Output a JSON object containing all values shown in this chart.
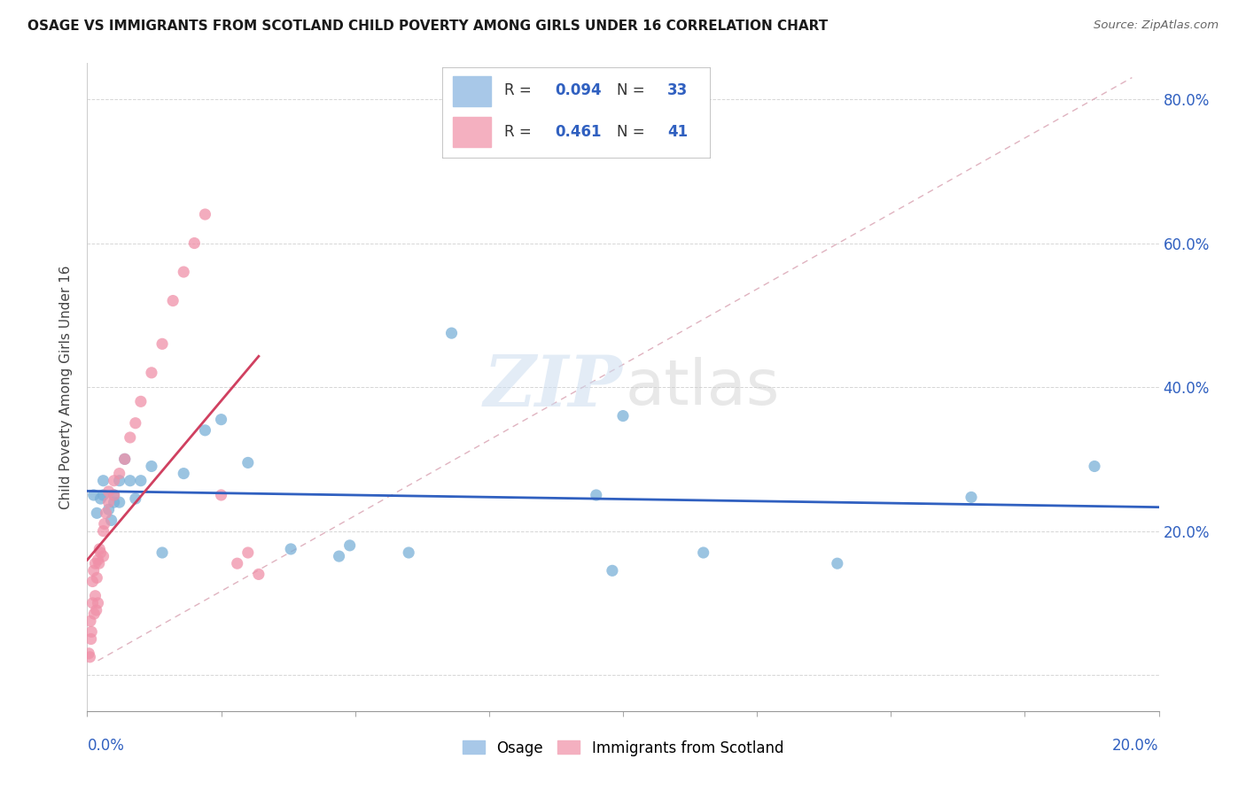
{
  "title": "OSAGE VS IMMIGRANTS FROM SCOTLAND CHILD POVERTY AMONG GIRLS UNDER 16 CORRELATION CHART",
  "source": "Source: ZipAtlas.com",
  "ylabel": "Child Poverty Among Girls Under 16",
  "xmin": 0.0,
  "xmax": 0.2,
  "ymin": -0.05,
  "ymax": 0.85,
  "ytick_positions": [
    0.0,
    0.2,
    0.4,
    0.6,
    0.8
  ],
  "ytick_labels": [
    "",
    "20.0%",
    "40.0%",
    "60.0%",
    "80.0%"
  ],
  "legend_bottom": [
    "Osage",
    "Immigrants from Scotland"
  ],
  "legend_bottom_colors": [
    "#a8c8e8",
    "#f4b0c0"
  ],
  "osage_color": "#7ab0d8",
  "scotland_color": "#f090a8",
  "osage_line_color": "#3060c0",
  "scotland_line_color": "#d04060",
  "dashed_line_color": "#e090a0",
  "R_osage": "0.094",
  "N_osage": "33",
  "R_scotland": "0.461",
  "N_scotland": "41",
  "value_color": "#3060c0",
  "osage_x": [
    0.0012,
    0.0018,
    0.0025,
    0.003,
    0.003,
    0.004,
    0.0045,
    0.005,
    0.005,
    0.006,
    0.006,
    0.007,
    0.008,
    0.009,
    0.01,
    0.012,
    0.014,
    0.018,
    0.022,
    0.025,
    0.03,
    0.038,
    0.047,
    0.049,
    0.06,
    0.068,
    0.095,
    0.098,
    0.1,
    0.115,
    0.14,
    0.165,
    0.188
  ],
  "osage_y": [
    0.25,
    0.225,
    0.245,
    0.27,
    0.25,
    0.23,
    0.215,
    0.25,
    0.24,
    0.24,
    0.27,
    0.3,
    0.27,
    0.245,
    0.27,
    0.29,
    0.17,
    0.28,
    0.34,
    0.355,
    0.295,
    0.175,
    0.165,
    0.18,
    0.17,
    0.475,
    0.25,
    0.145,
    0.36,
    0.17,
    0.155,
    0.247,
    0.29
  ],
  "scotland_x": [
    0.0003,
    0.0005,
    0.0006,
    0.0007,
    0.0008,
    0.001,
    0.001,
    0.0012,
    0.0013,
    0.0015,
    0.0015,
    0.0017,
    0.0018,
    0.002,
    0.002,
    0.0022,
    0.0023,
    0.0025,
    0.003,
    0.003,
    0.0032,
    0.0035,
    0.004,
    0.004,
    0.005,
    0.005,
    0.006,
    0.007,
    0.008,
    0.009,
    0.01,
    0.012,
    0.014,
    0.016,
    0.018,
    0.02,
    0.022,
    0.025,
    0.028,
    0.03,
    0.032
  ],
  "scotland_y": [
    0.03,
    0.025,
    0.075,
    0.05,
    0.06,
    0.1,
    0.13,
    0.145,
    0.085,
    0.11,
    0.155,
    0.09,
    0.135,
    0.1,
    0.16,
    0.155,
    0.175,
    0.17,
    0.165,
    0.2,
    0.21,
    0.225,
    0.24,
    0.255,
    0.25,
    0.27,
    0.28,
    0.3,
    0.33,
    0.35,
    0.38,
    0.42,
    0.46,
    0.52,
    0.56,
    0.6,
    0.64,
    0.25,
    0.155,
    0.17,
    0.14
  ]
}
